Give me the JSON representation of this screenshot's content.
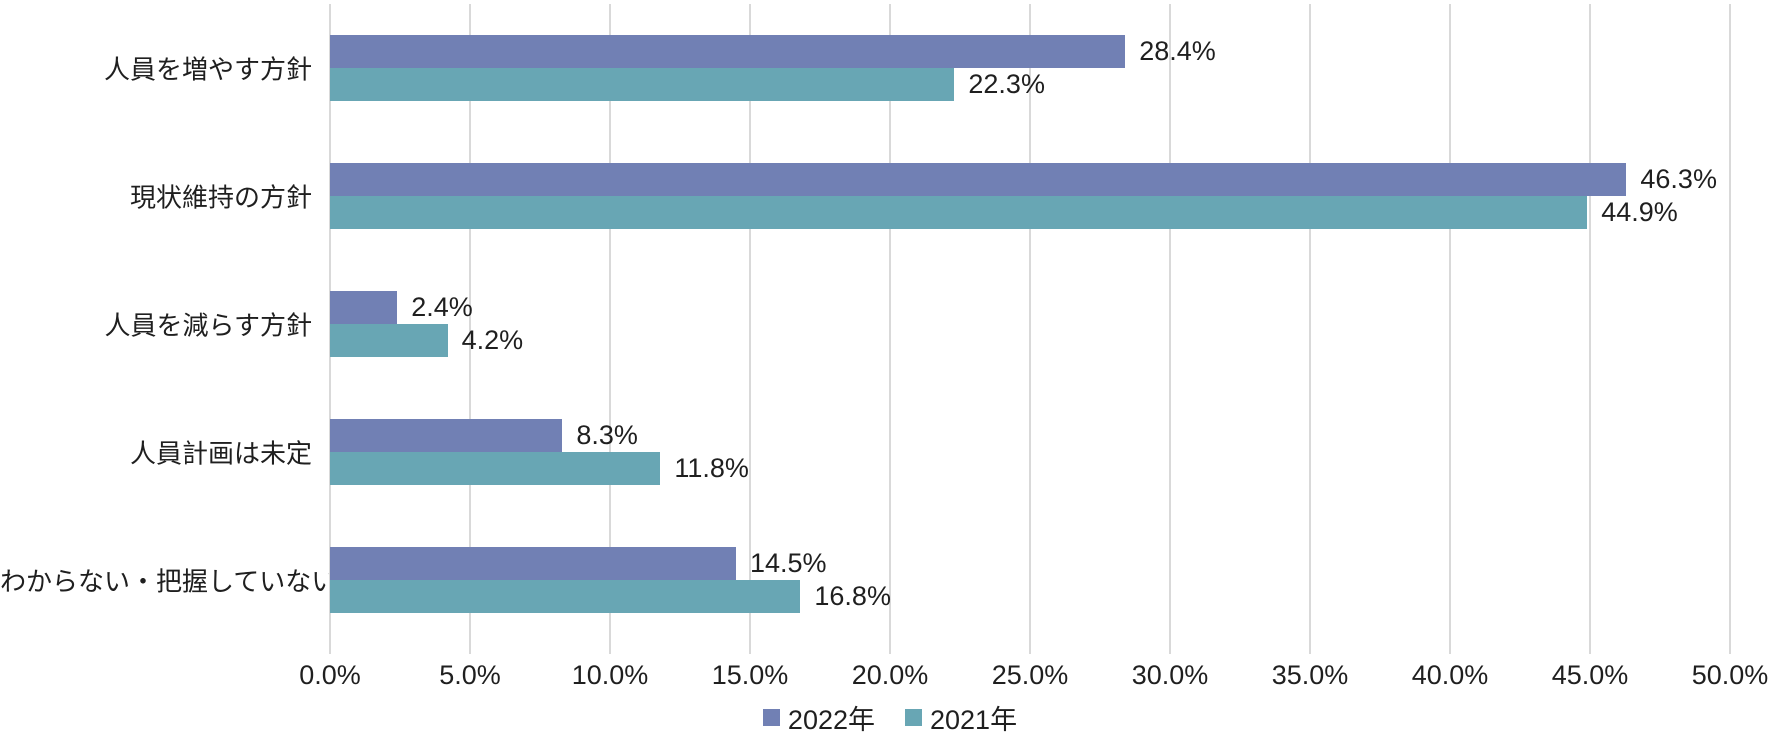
{
  "chart_data": {
    "type": "bar",
    "orientation": "horizontal",
    "title": "",
    "xlabel": "",
    "ylabel": "",
    "xlim": [
      0,
      50
    ],
    "grid": true,
    "legend_position": "bottom",
    "categories": [
      "人員を増やす方針",
      "現状維持の方針",
      "人員を減らす方針",
      "人員計画は未定",
      "わからない・把握していない"
    ],
    "series": [
      {
        "name": "2022年",
        "color": "#7180b4",
        "values": [
          28.4,
          46.3,
          2.4,
          8.3,
          14.5
        ],
        "labels": [
          "28.4%",
          "46.3%",
          "2.4%",
          "8.3%",
          "14.5%"
        ]
      },
      {
        "name": "2021年",
        "color": "#68a6b4",
        "values": [
          22.3,
          44.9,
          4.2,
          11.8,
          16.8
        ],
        "labels": [
          "22.3%",
          "44.9%",
          "4.2%",
          "11.8%",
          "16.8%"
        ]
      }
    ],
    "x_tick_values": [
      0,
      5,
      10,
      15,
      20,
      25,
      30,
      35,
      40,
      45,
      50
    ],
    "x_tick_labels": [
      "0.0%",
      "5.0%",
      "10.0%",
      "15.0%",
      "20.0%",
      "25.0%",
      "30.0%",
      "35.0%",
      "40.0%",
      "45.0%",
      "50.0%"
    ]
  },
  "colors": {
    "background": "#ffffff",
    "gridline": "#d9d9d9",
    "text": "#1f1f1f"
  }
}
